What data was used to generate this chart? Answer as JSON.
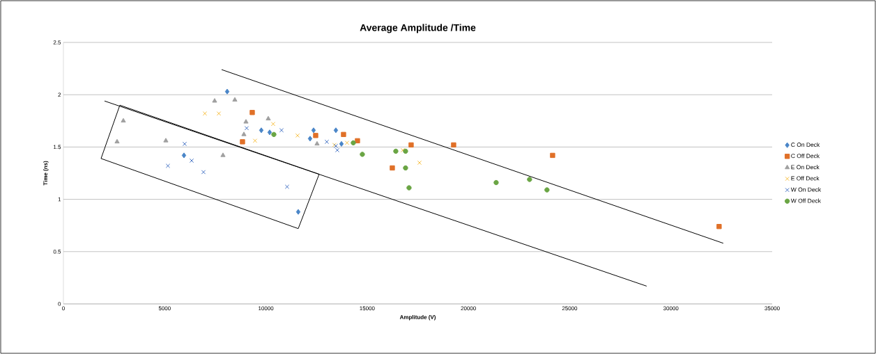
{
  "chart_data": {
    "type": "scatter",
    "title": "Average Amplitude /Time",
    "xlabel": "Amplitude (V)",
    "ylabel": "Time (ns)",
    "xlim": [
      0,
      35000
    ],
    "ylim": [
      0,
      2.5
    ],
    "xticks": [
      0,
      5000,
      10000,
      15000,
      20000,
      25000,
      30000,
      35000
    ],
    "yticks": [
      0,
      0.5,
      1,
      1.5,
      2,
      2.5
    ],
    "grid": "y",
    "legend": "right",
    "series": [
      {
        "name": "C On Deck",
        "color": "#4a86c8",
        "marker": "diamond",
        "x": [
          8087,
          5953,
          9772,
          10185,
          12181,
          12353,
          13454,
          13730,
          11596
        ],
        "values": [
          2.03,
          1.42,
          1.66,
          1.64,
          1.58,
          1.66,
          1.66,
          1.53,
          0.88
        ]
      },
      {
        "name": "C Off Deck",
        "color": "#e07028",
        "marker": "square",
        "x": [
          8843,
          9325,
          12457,
          13833,
          14521,
          16242,
          17171,
          19270,
          24157,
          32380
        ],
        "values": [
          1.55,
          1.83,
          1.61,
          1.62,
          1.56,
          1.3,
          1.52,
          1.52,
          1.42,
          0.74
        ]
      },
      {
        "name": "E On Deck",
        "color": "#a0a0a0",
        "marker": "triangle",
        "x": [
          2959,
          2650,
          5058,
          7467,
          8465,
          7880,
          9015,
          8912,
          10116,
          12525
        ],
        "values": [
          1.75,
          1.55,
          1.56,
          1.94,
          1.95,
          1.42,
          1.74,
          1.62,
          1.77,
          1.53
        ]
      },
      {
        "name": "E Off Deck",
        "color": "#f7c040",
        "marker": "cross",
        "x": [
          6985,
          7674,
          9463,
          10357,
          11562,
          13385,
          14005,
          16758,
          17584
        ],
        "values": [
          1.82,
          1.82,
          1.56,
          1.72,
          1.61,
          1.52,
          1.54,
          1.47,
          1.35
        ]
      },
      {
        "name": "W On Deck",
        "color": "#4472c4",
        "marker": "cross",
        "x": [
          5987,
          5161,
          6331,
          6916,
          9050,
          10770,
          11046,
          13007,
          13454,
          13523
        ],
        "values": [
          1.53,
          1.32,
          1.37,
          1.26,
          1.68,
          1.66,
          1.12,
          1.55,
          1.51,
          1.47
        ]
      },
      {
        "name": "W Off Deck",
        "color": "#6aa544",
        "marker": "circle",
        "x": [
          10392,
          14315,
          14762,
          16414,
          16895,
          16895,
          17068,
          21369,
          23020,
          23880
        ],
        "values": [
          1.62,
          1.54,
          1.43,
          1.46,
          1.46,
          1.3,
          1.11,
          1.16,
          1.19,
          1.09
        ]
      },
      {
        "type": "line",
        "color": "#000000",
        "marker": "none",
        "x": [
          1858,
          2787
        ],
        "values": [
          1.39,
          1.9
        ]
      },
      {
        "type": "line",
        "color": "#000000",
        "marker": "none",
        "x": [
          2787,
          12628
        ],
        "values": [
          1.9,
          1.24
        ]
      },
      {
        "type": "line",
        "color": "#000000",
        "marker": "none",
        "x": [
          11596,
          12628
        ],
        "values": [
          0.72,
          1.24
        ]
      },
      {
        "type": "line",
        "color": "#000000",
        "marker": "none",
        "x": [
          1858,
          11596
        ],
        "values": [
          1.39,
          0.72
        ]
      },
      {
        "type": "line",
        "color": "#000000",
        "marker": "none",
        "x": [
          2030,
          28801
        ],
        "values": [
          1.94,
          0.17
        ]
      },
      {
        "type": "line",
        "color": "#000000",
        "marker": "none",
        "x": [
          7811,
          32586
        ],
        "values": [
          2.24,
          0.58
        ]
      }
    ]
  }
}
